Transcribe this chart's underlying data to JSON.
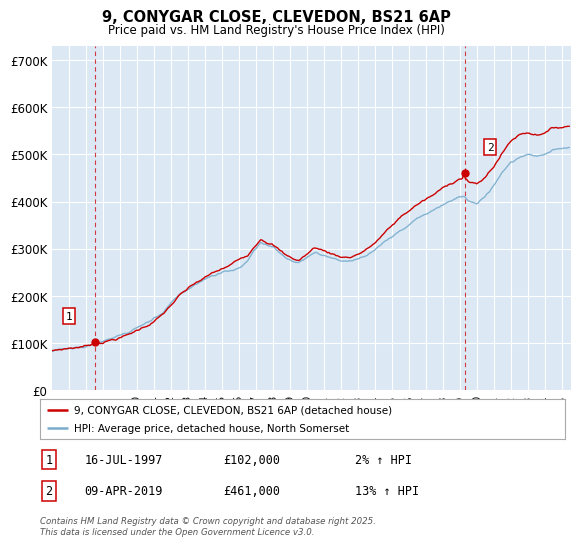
{
  "title": "9, CONYGAR CLOSE, CLEVEDON, BS21 6AP",
  "subtitle": "Price paid vs. HM Land Registry's House Price Index (HPI)",
  "plot_bg_color": "#dce9f5",
  "ylabel_ticks": [
    "£0",
    "£100K",
    "£200K",
    "£300K",
    "£400K",
    "£500K",
    "£600K",
    "£700K"
  ],
  "ytick_values": [
    0,
    100000,
    200000,
    300000,
    400000,
    500000,
    600000,
    700000
  ],
  "ylim": [
    0,
    730000
  ],
  "xlim_start": 1995.0,
  "xlim_end": 2025.5,
  "red_line_color": "#cc0000",
  "blue_line_color": "#7aadcc",
  "marker1_x": 1997.54,
  "marker1_y": 102000,
  "marker2_x": 2019.27,
  "marker2_y": 461000,
  "vline1_x": 1997.54,
  "vline2_x": 2019.27,
  "legend_label_red": "9, CONYGAR CLOSE, CLEVEDON, BS21 6AP (detached house)",
  "legend_label_blue": "HPI: Average price, detached house, North Somerset",
  "annotation1_label": "1",
  "annotation2_label": "2",
  "sale1_date": "16-JUL-1997",
  "sale1_price": "£102,000",
  "sale1_hpi": "2% ↑ HPI",
  "sale2_date": "09-APR-2019",
  "sale2_price": "£461,000",
  "sale2_hpi": "13% ↑ HPI",
  "footer": "Contains HM Land Registry data © Crown copyright and database right 2025.\nThis data is licensed under the Open Government Licence v3.0.",
  "xtick_years": [
    1996,
    1997,
    1998,
    1999,
    2000,
    2001,
    2002,
    2003,
    2004,
    2005,
    2006,
    2007,
    2008,
    2009,
    2010,
    2011,
    2012,
    2013,
    2014,
    2015,
    2016,
    2017,
    2018,
    2019,
    2020,
    2021,
    2022,
    2023,
    2024,
    2025
  ]
}
